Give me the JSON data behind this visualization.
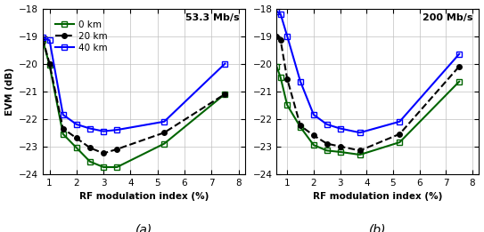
{
  "panel_a": {
    "title": "53.3 Mb/s",
    "series": {
      "0km": {
        "x": [
          0.75,
          1.0,
          1.5,
          2.0,
          2.5,
          3.0,
          3.5,
          5.25,
          7.5
        ],
        "y": [
          -19.15,
          -20.05,
          -22.55,
          -23.05,
          -23.55,
          -23.75,
          -23.75,
          -22.9,
          -21.1
        ],
        "color": "#006400",
        "linestyle": "-",
        "marker": "s",
        "markerfacecolor": "none",
        "markersize": 4
      },
      "20km": {
        "x": [
          0.75,
          1.0,
          1.5,
          2.0,
          2.5,
          3.0,
          3.5,
          5.25,
          7.5
        ],
        "y": [
          -19.1,
          -20.0,
          -22.35,
          -22.7,
          -23.05,
          -23.25,
          -23.1,
          -22.5,
          -21.1
        ],
        "color": "#000000",
        "linestyle": "--",
        "marker": "o",
        "markerfacecolor": "#000000",
        "markersize": 4
      },
      "40km": {
        "x": [
          0.75,
          1.0,
          1.5,
          2.0,
          2.5,
          3.0,
          3.5,
          5.25,
          7.5
        ],
        "y": [
          -19.05,
          -19.15,
          -21.85,
          -22.2,
          -22.35,
          -22.45,
          -22.4,
          -22.1,
          -20.0
        ],
        "color": "#0000FF",
        "linestyle": "-",
        "marker": "s",
        "markerfacecolor": "none",
        "markersize": 4
      }
    },
    "xlabel": "RF modulation index (%)",
    "ylabel": "EVM (dB)",
    "xlim": [
      0.75,
      8.25
    ],
    "ylim": [
      -24,
      -18
    ],
    "xticks": [
      1,
      2,
      3,
      4,
      5,
      6,
      7,
      8
    ],
    "yticks": [
      -18,
      -19,
      -20,
      -21,
      -22,
      -23,
      -24
    ],
    "panel_label": "(a)"
  },
  "panel_b": {
    "title": "200 Mb/s",
    "series": {
      "0km": {
        "x": [
          0.6,
          0.75,
          1.0,
          1.5,
          2.0,
          2.5,
          3.0,
          3.75,
          5.25,
          7.5
        ],
        "y": [
          -20.1,
          -20.5,
          -21.5,
          -22.3,
          -22.95,
          -23.15,
          -23.2,
          -23.3,
          -22.85,
          -20.65
        ],
        "color": "#006400",
        "linestyle": "-",
        "marker": "s",
        "markerfacecolor": "none",
        "markersize": 4
      },
      "20km": {
        "x": [
          0.6,
          0.75,
          1.0,
          1.5,
          2.0,
          2.5,
          3.0,
          3.75,
          5.25,
          7.5
        ],
        "y": [
          -19.0,
          -19.15,
          -20.55,
          -22.25,
          -22.6,
          -22.9,
          -23.0,
          -23.15,
          -22.55,
          -20.1
        ],
        "color": "#000000",
        "linestyle": "--",
        "marker": "o",
        "markerfacecolor": "#000000",
        "markersize": 4
      },
      "40km": {
        "x": [
          0.6,
          0.75,
          1.0,
          1.5,
          2.0,
          2.5,
          3.0,
          3.75,
          5.25,
          7.5
        ],
        "y": [
          -18.1,
          -18.2,
          -19.0,
          -20.65,
          -21.85,
          -22.2,
          -22.35,
          -22.5,
          -22.1,
          -19.65
        ],
        "color": "#0000FF",
        "linestyle": "-",
        "marker": "s",
        "markerfacecolor": "none",
        "markersize": 4
      }
    },
    "xlabel": "RF modulation index (%)",
    "ylabel": "",
    "xlim": [
      0.6,
      8.25
    ],
    "ylim": [
      -24,
      -18
    ],
    "xticks": [
      1,
      2,
      3,
      4,
      5,
      6,
      7,
      8
    ],
    "yticks": [
      -18,
      -19,
      -20,
      -21,
      -22,
      -23,
      -24
    ],
    "panel_label": "(b)"
  },
  "legend_labels": [
    "0 km",
    "20 km",
    "40 km"
  ],
  "legend_linestyles": [
    "-",
    "--",
    "-"
  ],
  "legend_colors": [
    "#006400",
    "#000000",
    "#0000FF"
  ],
  "legend_markers": [
    "s",
    "o",
    "s"
  ],
  "legend_markerfacecolors": [
    "none",
    "#000000",
    "none"
  ]
}
